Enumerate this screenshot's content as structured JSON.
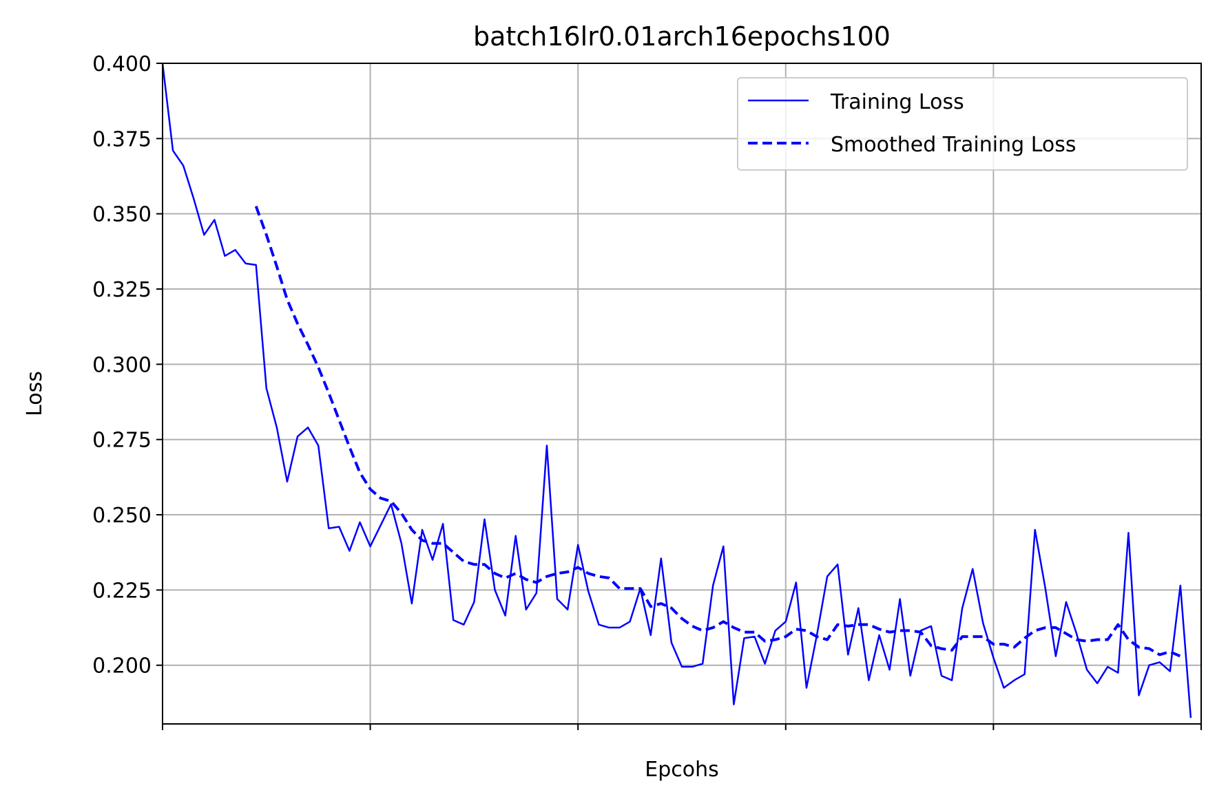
{
  "chart_data": {
    "type": "line",
    "title": "batch16lr0.01arch16epochs100",
    "xlabel": "Epcohs",
    "ylabel": "Loss",
    "xlim": [
      0,
      100
    ],
    "ylim": [
      0.1805,
      0.4
    ],
    "x_tick_labels_shown": false,
    "yticks": [
      "0.200",
      "0.225",
      "0.250",
      "0.275",
      "0.300",
      "0.325",
      "0.350",
      "0.375",
      "0.400"
    ],
    "grid": true,
    "legend_position": "top-right",
    "series": [
      {
        "name": "Training Loss",
        "style": "solid",
        "color": "#0000ff",
        "x_start": 0,
        "values": [
          0.4,
          0.371,
          0.366,
          0.355,
          0.343,
          0.348,
          0.336,
          0.338,
          0.3335,
          0.333,
          0.292,
          0.279,
          0.261,
          0.276,
          0.279,
          0.273,
          0.2455,
          0.246,
          0.238,
          0.2475,
          0.2395,
          0.2465,
          0.2535,
          0.2405,
          0.2205,
          0.245,
          0.235,
          0.247,
          0.215,
          0.2135,
          0.221,
          0.2485,
          0.225,
          0.2165,
          0.243,
          0.2185,
          0.224,
          0.273,
          0.222,
          0.2185,
          0.24,
          0.2245,
          0.2135,
          0.2125,
          0.2125,
          0.2145,
          0.2255,
          0.21,
          0.2355,
          0.2075,
          0.1995,
          0.1995,
          0.2005,
          0.2265,
          0.2395,
          0.187,
          0.209,
          0.2095,
          0.2005,
          0.2115,
          0.2145,
          0.2275,
          0.1925,
          0.21,
          0.2295,
          0.2335,
          0.2035,
          0.219,
          0.195,
          0.21,
          0.1985,
          0.222,
          0.1965,
          0.2115,
          0.213,
          0.1965,
          0.195,
          0.219,
          0.232,
          0.214,
          0.2025,
          0.1925,
          0.195,
          0.197,
          0.245,
          0.2255,
          0.203,
          0.221,
          0.2105,
          0.1985,
          0.194,
          0.1995,
          0.1975,
          0.244,
          0.19,
          0.2,
          0.201,
          0.198,
          0.2265,
          0.1825
        ]
      },
      {
        "name": "Smoothed Training Loss",
        "style": "dashed",
        "color": "#0000ff",
        "x_start": 9,
        "values": [
          0.3525,
          0.343,
          0.3325,
          0.3215,
          0.3135,
          0.3065,
          0.299,
          0.2905,
          0.2815,
          0.2725,
          0.264,
          0.2585,
          0.2555,
          0.2545,
          0.2505,
          0.245,
          0.2415,
          0.2405,
          0.2405,
          0.2375,
          0.2345,
          0.2335,
          0.2335,
          0.2305,
          0.229,
          0.2305,
          0.2285,
          0.2275,
          0.2295,
          0.2305,
          0.231,
          0.2325,
          0.2305,
          0.2295,
          0.229,
          0.2255,
          0.2255,
          0.2255,
          0.2195,
          0.2205,
          0.219,
          0.2155,
          0.213,
          0.2115,
          0.2125,
          0.2145,
          0.2125,
          0.211,
          0.211,
          0.208,
          0.2085,
          0.2095,
          0.212,
          0.2115,
          0.2095,
          0.2085,
          0.2135,
          0.213,
          0.2135,
          0.2135,
          0.212,
          0.211,
          0.2115,
          0.2115,
          0.211,
          0.2065,
          0.2055,
          0.205,
          0.2095,
          0.2095,
          0.2095,
          0.207,
          0.207,
          0.206,
          0.209,
          0.2115,
          0.2125,
          0.2125,
          0.2105,
          0.2085,
          0.208,
          0.2085,
          0.2085,
          0.2135,
          0.2085,
          0.206,
          0.2055,
          0.2035,
          0.2045,
          0.203
        ]
      }
    ]
  }
}
